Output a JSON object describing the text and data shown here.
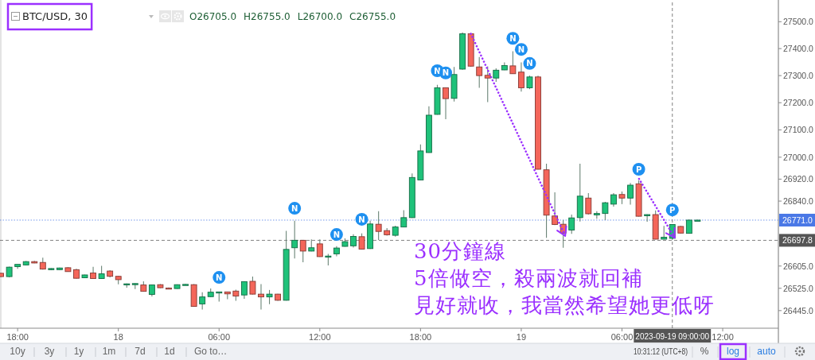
{
  "chart_data": {
    "type": "candlestick",
    "title": "BTC/USD, 30",
    "x": [
      "2023-09-17T17:00",
      "2023-09-17T17:30",
      "2023-09-17T18:00",
      "2023-09-17T18:30",
      "2023-09-17T19:00",
      "2023-09-17T19:30",
      "2023-09-17T20:00",
      "2023-09-17T20:30",
      "2023-09-17T21:00",
      "2023-09-17T21:30",
      "2023-09-17T22:00",
      "2023-09-17T22:30",
      "2023-09-17T23:00",
      "2023-09-17T23:30",
      "2023-09-18T00:00",
      "2023-09-18T00:30",
      "2023-09-18T01:00",
      "2023-09-18T01:30",
      "2023-09-18T02:00",
      "2023-09-18T02:30",
      "2023-09-18T03:00",
      "2023-09-18T03:30",
      "2023-09-18T04:00",
      "2023-09-18T04:30",
      "2023-09-18T05:00",
      "2023-09-18T05:30",
      "2023-09-18T06:00",
      "2023-09-18T06:30",
      "2023-09-18T07:00",
      "2023-09-18T07:30",
      "2023-09-18T08:00",
      "2023-09-18T08:30",
      "2023-09-18T09:00",
      "2023-09-18T09:30",
      "2023-09-18T10:00",
      "2023-09-18T10:30",
      "2023-09-18T11:00",
      "2023-09-18T11:30",
      "2023-09-18T12:00",
      "2023-09-18T12:30",
      "2023-09-18T13:00",
      "2023-09-18T13:30",
      "2023-09-18T14:00",
      "2023-09-18T14:30",
      "2023-09-18T15:00",
      "2023-09-18T15:30",
      "2023-09-18T16:00",
      "2023-09-18T16:30",
      "2023-09-18T17:00",
      "2023-09-18T17:30",
      "2023-09-18T18:00",
      "2023-09-18T18:30",
      "2023-09-18T19:00",
      "2023-09-18T19:30",
      "2023-09-18T20:00",
      "2023-09-18T20:30",
      "2023-09-18T21:00",
      "2023-09-18T21:30",
      "2023-09-18T22:00",
      "2023-09-18T22:30",
      "2023-09-18T23:00",
      "2023-09-18T23:30",
      "2023-09-19T00:00",
      "2023-09-19T00:30",
      "2023-09-19T01:00",
      "2023-09-19T01:30",
      "2023-09-19T02:00",
      "2023-09-19T02:30",
      "2023-09-19T03:00",
      "2023-09-19T03:30",
      "2023-09-19T04:00",
      "2023-09-19T04:30",
      "2023-09-19T05:00",
      "2023-09-19T05:30",
      "2023-09-19T06:00",
      "2023-09-19T06:30",
      "2023-09-19T07:00",
      "2023-09-19T07:30",
      "2023-09-19T08:00",
      "2023-09-19T08:30",
      "2023-09-19T09:00",
      "2023-09-19T09:30",
      "2023-09-19T10:00",
      "2023-09-19T10:30"
    ],
    "ohlc": [
      [
        26579,
        26580,
        26566,
        26567
      ],
      [
        26567,
        26603,
        26564,
        26601
      ],
      [
        26603,
        26611,
        26595,
        26611
      ],
      [
        26609,
        26623,
        26607,
        26621
      ],
      [
        26621,
        26624,
        26615,
        26616
      ],
      [
        26618,
        26635,
        26592,
        26594
      ],
      [
        26594,
        26597,
        26590,
        26596
      ],
      [
        26592,
        26599,
        26591,
        26598
      ],
      [
        26599,
        26601,
        26584,
        26585
      ],
      [
        26592,
        26595,
        26560,
        26561
      ],
      [
        26563,
        26574,
        26562,
        26573
      ],
      [
        26580,
        26602,
        26559,
        26560
      ],
      [
        26560,
        26606,
        26559,
        26577
      ],
      [
        26587,
        26590,
        26564,
        26568
      ],
      [
        26568,
        26569,
        26539,
        26556
      ],
      [
        26540,
        26542,
        26527,
        26541
      ],
      [
        26541,
        26543,
        26522,
        26542
      ],
      [
        26537,
        26550,
        26513,
        26514
      ],
      [
        26503,
        26538,
        26496,
        26537
      ],
      [
        26538,
        26540,
        26526,
        26527
      ],
      [
        26526,
        26528,
        26523,
        26525
      ],
      [
        26524,
        26539,
        26523,
        26538
      ],
      [
        26538,
        26541,
        26537,
        26539
      ],
      [
        26538,
        26540,
        26459,
        26460
      ],
      [
        26469,
        26511,
        26449,
        26494
      ],
      [
        26495,
        26524,
        26493,
        26511
      ],
      [
        26511,
        26513,
        26477,
        26512
      ],
      [
        26512,
        26513,
        26486,
        26505
      ],
      [
        26515,
        26520,
        26480,
        26497
      ],
      [
        26501,
        26550,
        26487,
        26549
      ],
      [
        26550,
        26567,
        26503,
        26504
      ],
      [
        26504,
        26540,
        26449,
        26494
      ],
      [
        26494,
        26519,
        26468,
        26504
      ],
      [
        26504,
        26505,
        26480,
        26482
      ],
      [
        26482,
        26732,
        26481,
        26665
      ],
      [
        26671,
        26769,
        26632,
        26698
      ],
      [
        26698,
        26699,
        26619,
        26659
      ],
      [
        26659,
        26701,
        26658,
        26671
      ],
      [
        26685,
        26701,
        26638,
        26639
      ],
      [
        26639,
        26649,
        26607,
        26641
      ],
      [
        26649,
        26677,
        26640,
        26670
      ],
      [
        26676,
        26705,
        26675,
        26693
      ],
      [
        26678,
        26720,
        26672,
        26712
      ],
      [
        26711,
        26723,
        26665,
        26666
      ],
      [
        26668,
        26769,
        26667,
        26757
      ],
      [
        26756,
        26803,
        26699,
        26730
      ],
      [
        26733,
        26742,
        26715,
        26718
      ],
      [
        26716,
        26751,
        26711,
        26746
      ],
      [
        26746,
        26807,
        26745,
        26780
      ],
      [
        26780,
        26941,
        26779,
        26926
      ],
      [
        26917,
        27047,
        26916,
        27023
      ],
      [
        27017,
        27187,
        27016,
        27154
      ],
      [
        27157,
        27266,
        27156,
        27255
      ],
      [
        27255,
        27256,
        27139,
        27215
      ],
      [
        27216,
        27332,
        27204,
        27304
      ],
      [
        27324,
        27460,
        27322,
        27455
      ],
      [
        27455,
        27458,
        27333,
        27335
      ],
      [
        27332,
        27369,
        27255,
        27300
      ],
      [
        27301,
        27334,
        27202,
        27291
      ],
      [
        27291,
        27327,
        27277,
        27320
      ],
      [
        27321,
        27349,
        27320,
        27337
      ],
      [
        27336,
        27390,
        27306,
        27307
      ],
      [
        27313,
        27349,
        27241,
        27255
      ],
      [
        27255,
        27300,
        27250,
        27295
      ],
      [
        27295,
        27300,
        26955,
        26956
      ],
      [
        26954,
        26976,
        26707,
        26789
      ],
      [
        26786,
        26872,
        26753,
        26755
      ],
      [
        26756,
        26772,
        26671,
        26724
      ],
      [
        26735,
        26791,
        26721,
        26779
      ],
      [
        26780,
        26976,
        26766,
        26858
      ],
      [
        26851,
        26869,
        26791,
        26794
      ],
      [
        26790,
        26803,
        26776,
        26795
      ],
      [
        26795,
        26837,
        26771,
        26834
      ],
      [
        26829,
        26869,
        26820,
        26863
      ],
      [
        26864,
        26875,
        26829,
        26851
      ],
      [
        26851,
        26906,
        26827,
        26898
      ],
      [
        26903,
        26915,
        26784,
        26785
      ],
      [
        26790,
        26792,
        26765,
        26791
      ],
      [
        26791,
        26806,
        26701,
        26702
      ],
      [
        26702,
        26750,
        26701,
        26709
      ],
      [
        26705,
        26755,
        26700,
        26755
      ],
      [
        26748,
        26750,
        26722,
        26724
      ],
      [
        26723,
        26773,
        26722,
        26771
      ],
      [
        26771,
        26772,
        26770,
        26771
      ]
    ],
    "colors": [
      "#f4665a",
      "#1fc27a",
      "#1fc27a",
      "#1fc27a",
      "#f4665a",
      "#f4665a",
      "#1fc27a",
      "#1fc27a",
      "#f4665a",
      "#f4665a",
      "#1fc27a",
      "#f4665a",
      "#1fc27a",
      "#f4665a",
      "#f4665a",
      "#1fc27a",
      "#1fc27a",
      "#f4665a",
      "#1fc27a",
      "#f4665a",
      "#f4665a",
      "#1fc27a",
      "#1fc27a",
      "#f4665a",
      "#1fc27a",
      "#1fc27a",
      "#1fc27a",
      "#f4665a",
      "#f4665a",
      "#1fc27a",
      "#f4665a",
      "#f4665a",
      "#1fc27a",
      "#f4665a",
      "#1fc27a",
      "#1fc27a",
      "#f4665a",
      "#1fc27a",
      "#f4665a",
      "#1fc27a",
      "#1fc27a",
      "#1fc27a",
      "#1fc27a",
      "#f4665a",
      "#1fc27a",
      "#f4665a",
      "#f4665a",
      "#1fc27a",
      "#1fc27a",
      "#1fc27a",
      "#1fc27a",
      "#1fc27a",
      "#1fc27a",
      "#f4665a",
      "#1fc27a",
      "#1fc27a",
      "#f4665a",
      "#f4665a",
      "#f4665a",
      "#1fc27a",
      "#1fc27a",
      "#f4665a",
      "#f4665a",
      "#1fc27a",
      "#f4665a",
      "#f4665a",
      "#f4665a",
      "#f4665a",
      "#1fc27a",
      "#1fc27a",
      "#f4665a",
      "#1fc27a",
      "#1fc27a",
      "#1fc27a",
      "#f4665a",
      "#1fc27a",
      "#f4665a",
      "#1fc27a",
      "#f4665a",
      "#1fc27a",
      "#1fc27a",
      "#f4665a",
      "#1fc27a",
      "#1fc27a"
    ],
    "series": [
      {
        "type": "line",
        "x": [
          "2023-09-18T21:00",
          "2023-09-19T02:37"
        ],
        "values": [
          27455,
          26714
        ],
        "color": "#9b30ff",
        "line_style": "dotted"
      },
      {
        "type": "line",
        "x": [
          "2023-09-19T07:01",
          "2023-09-19T09:08"
        ],
        "values": [
          26921,
          26708
        ],
        "color": "#9b30ff",
        "line_style": "dotted"
      }
    ],
    "log": true,
    "xlim": [
      "2023-09-17T16:57",
      "2023-09-19T15:19"
    ],
    "xticks": [
      {
        "value": "2023-09-17T18:00",
        "label": "18:00"
      },
      {
        "value": "2023-09-18T00:00",
        "label": "18"
      },
      {
        "value": "2023-09-18T06:00",
        "label": "06:00"
      },
      {
        "value": "2023-09-18T12:00",
        "label": "12:00"
      },
      {
        "value": "2023-09-18T18:00",
        "label": "18:00"
      },
      {
        "value": "2023-09-19T00:00",
        "label": "19"
      },
      {
        "value": "2023-09-19T06:00",
        "label": "06:00"
      },
      {
        "value": "2023-09-19T12:00",
        "label": "12:00"
      }
    ],
    "ylim": [
      26382,
      27572
    ],
    "yticks": [
      {
        "value": 26445,
        "label": "26445.0"
      },
      {
        "value": 26525,
        "label": "26525.0"
      },
      {
        "value": 26605,
        "label": "26605.0"
      },
      {
        "value": 26840,
        "label": "26840.0"
      },
      {
        "value": 26920,
        "label": "26920.0"
      },
      {
        "value": 27000,
        "label": "27000.0"
      },
      {
        "value": 27100,
        "label": "27100.0"
      },
      {
        "value": 27200,
        "label": "27200.0"
      },
      {
        "value": 27300,
        "label": "27300.0"
      },
      {
        "value": 27400,
        "label": "27400.0"
      },
      {
        "value": 27500,
        "label": "27500.0"
      }
    ],
    "ref_lines": [
      {
        "axis": "y",
        "value": 26771.0,
        "label": "26771.0",
        "color": "#4a78e6",
        "line_style": "dotted"
      },
      {
        "axis": "y",
        "value": 26697.8,
        "label": "26697.8",
        "color": "#555555",
        "line_style": "dashed"
      },
      {
        "axis": "x",
        "value": "2023-09-19T09:00",
        "label": "2023-09-19 09:00:00",
        "color": "#555555",
        "line_style": "dashed"
      }
    ],
    "annotations": [
      "O26705.0",
      "H26755.0",
      "L26700.0",
      "C26755.0",
      "30分鐘線",
      "5倍做空，殺兩波就回補",
      "見好就收，我當然希望她更低呀",
      "10y",
      "3y",
      "1y",
      "1m",
      "7d",
      "1d",
      "Go to…",
      "10:31:12 (UTC+8)",
      "%",
      "log",
      "auto",
      {
        "text": "N",
        "x": "2023-09-18T06:00",
        "y": 26564
      },
      {
        "text": "N",
        "x": "2023-09-18T10:30",
        "y": 26814
      },
      {
        "text": "N",
        "x": "2023-09-18T13:00",
        "y": 26719
      },
      {
        "text": "N",
        "x": "2023-09-18T14:30",
        "y": 26774
      },
      {
        "text": "N",
        "x": "2023-09-18T19:00",
        "y": 27318
      },
      {
        "text": "N",
        "x": "2023-09-18T19:30",
        "y": 27310
      },
      {
        "text": "N",
        "x": "2023-09-18T23:30",
        "y": 27438
      },
      {
        "text": "N",
        "x": "2023-09-19T00:00",
        "y": 27397
      },
      {
        "text": "N",
        "x": "2023-09-19T00:30",
        "y": 27345
      },
      {
        "text": "P",
        "x": "2023-09-19T07:00",
        "y": 26956
      },
      {
        "text": "P",
        "x": "2023-09-19T09:00",
        "y": 26808
      }
    ]
  }
}
